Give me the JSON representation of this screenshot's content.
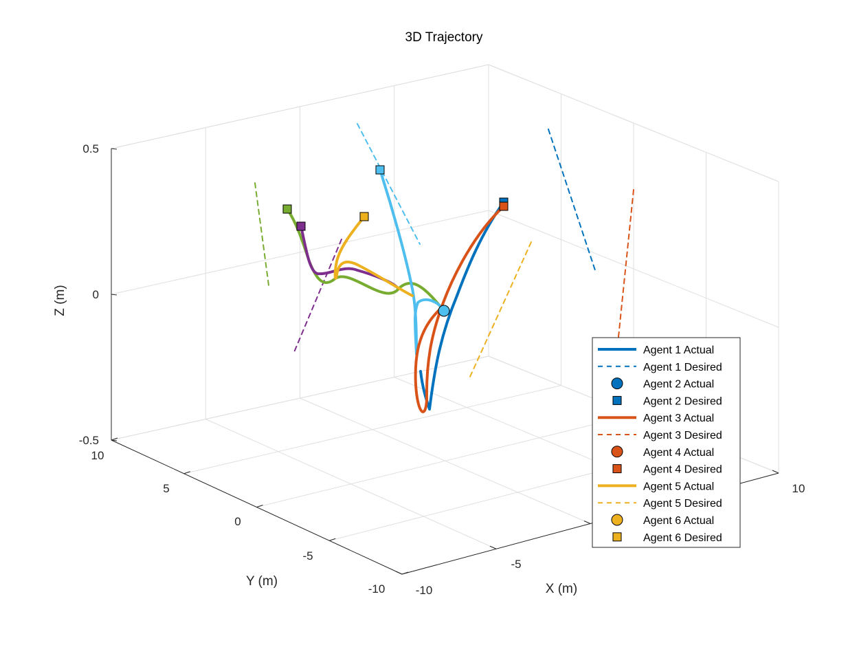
{
  "chart_data": {
    "type": "line",
    "title": "3D Trajectory",
    "xlabel": "X (m)",
    "ylabel": "Y (m)",
    "zlabel": "Z (m)",
    "xlim": [
      -10,
      10
    ],
    "ylim": [
      -10,
      10
    ],
    "zlim": [
      -0.5,
      0.5
    ],
    "x_ticks": [
      "-10",
      "-5",
      "10"
    ],
    "y_ticks": [
      "10",
      "5",
      "0",
      "-5",
      "-10"
    ],
    "z_ticks": [
      "0.5",
      "0",
      "-0.5"
    ],
    "grid": true,
    "box": true,
    "legend_position": "bottom-right",
    "series": [
      {
        "name": "Agent 1 Actual",
        "style": "solid",
        "color": "#0072BD"
      },
      {
        "name": "Agent 1 Desired",
        "style": "dashed",
        "color": "#0072BD"
      },
      {
        "name": "Agent 2 Actual",
        "style": "circle",
        "color": "#0072BD"
      },
      {
        "name": "Agent 2 Desired",
        "style": "square",
        "color": "#0072BD"
      },
      {
        "name": "Agent 3 Actual",
        "style": "solid",
        "color": "#D95319"
      },
      {
        "name": "Agent 3 Desired",
        "style": "dashed",
        "color": "#D95319"
      },
      {
        "name": "Agent 4 Actual",
        "style": "circle",
        "color": "#D95319"
      },
      {
        "name": "Agent 4 Desired",
        "style": "square",
        "color": "#D95319"
      },
      {
        "name": "Agent 5 Actual",
        "style": "solid",
        "color": "#EDB120"
      },
      {
        "name": "Agent 5 Desired",
        "style": "dashed",
        "color": "#EDB120"
      },
      {
        "name": "Agent 6 Actual",
        "style": "circle",
        "color": "#EDB120"
      },
      {
        "name": "Agent 6 Desired",
        "style": "square",
        "color": "#EDB120"
      }
    ],
    "extra_colors": {
      "purple": "#7E2F8E",
      "green": "#77AC30",
      "cyan": "#4DBEEE"
    }
  }
}
